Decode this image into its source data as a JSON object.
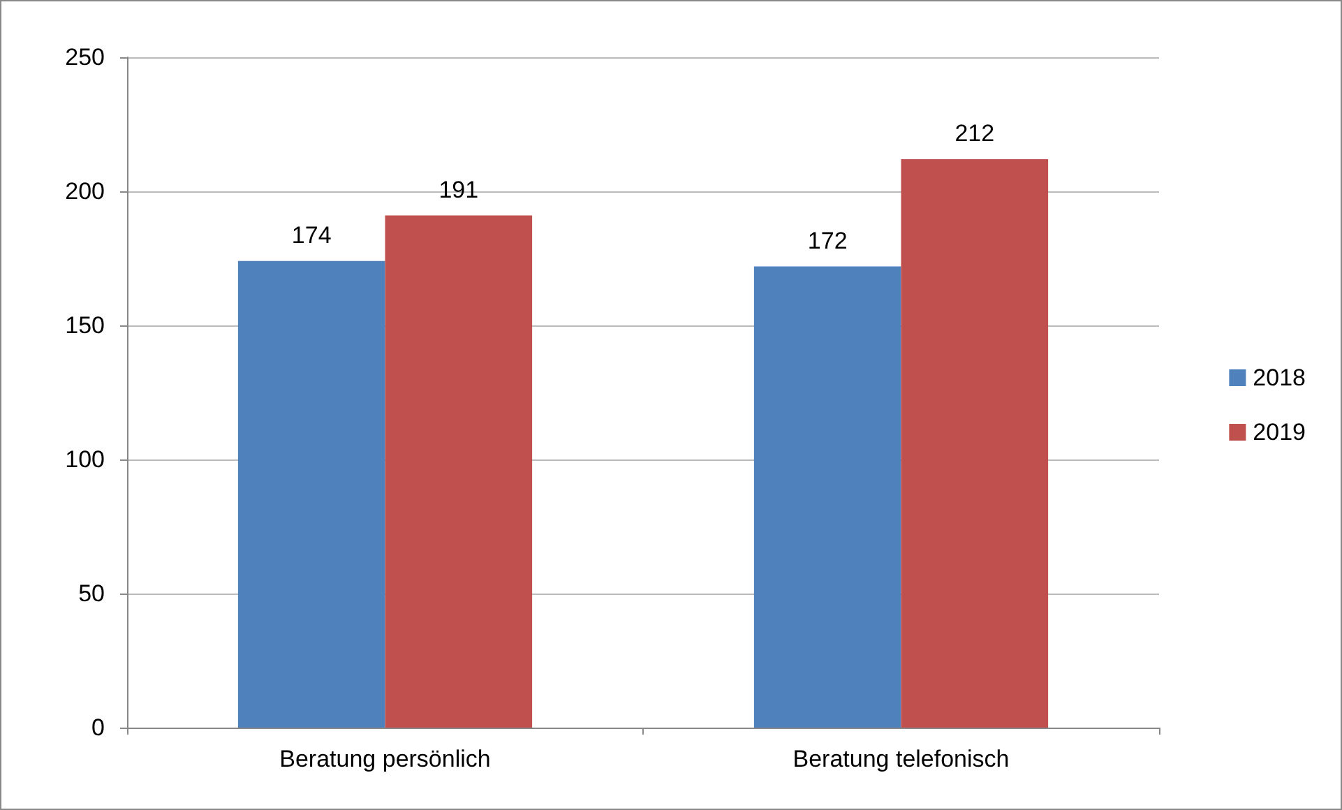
{
  "chart_data": {
    "type": "bar",
    "categories": [
      "Beratung persönlich",
      "Beratung telefonisch"
    ],
    "series": [
      {
        "name": "2018",
        "color": "#4f81bd",
        "values": [
          174,
          172
        ]
      },
      {
        "name": "2019",
        "color": "#c0504d",
        "values": [
          191,
          212
        ]
      }
    ],
    "ylim": [
      0,
      250
    ],
    "yticks": [
      0,
      50,
      100,
      150,
      200,
      250
    ],
    "grid": "y",
    "legend": "right",
    "data_labels": true
  }
}
